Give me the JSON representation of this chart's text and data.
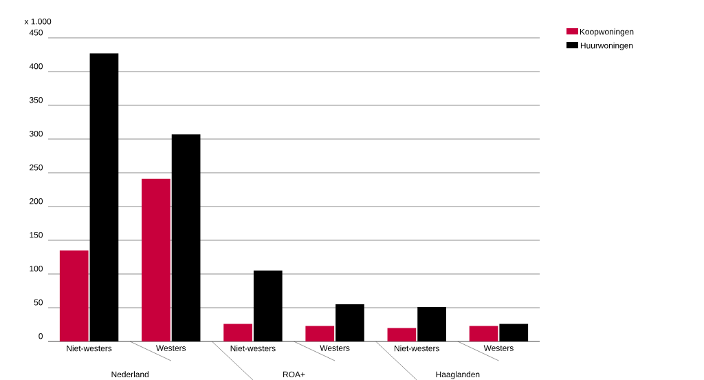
{
  "chart_data": {
    "type": "bar",
    "ylabel": "x 1.000",
    "categories": [
      "Niet-westers",
      "Westers",
      "Niet-westers",
      "Westers",
      "Niet-westers",
      "Westers"
    ],
    "series": [
      {
        "name": "Koopwoningen",
        "color": "#c8003c",
        "values": [
          135,
          241,
          26,
          23,
          20,
          23
        ]
      },
      {
        "name": "Huurwoningen",
        "color": "#000000",
        "values": [
          427,
          307,
          105,
          55,
          51,
          26
        ]
      }
    ],
    "annotations": [
      "Nederland",
      "ROA+",
      "Haaglanden"
    ],
    "ylim": [
      0,
      450
    ],
    "yticks": [
      0,
      50,
      100,
      150,
      200,
      250,
      300,
      350,
      400,
      450
    ],
    "grid": "y",
    "legend": "top right"
  }
}
